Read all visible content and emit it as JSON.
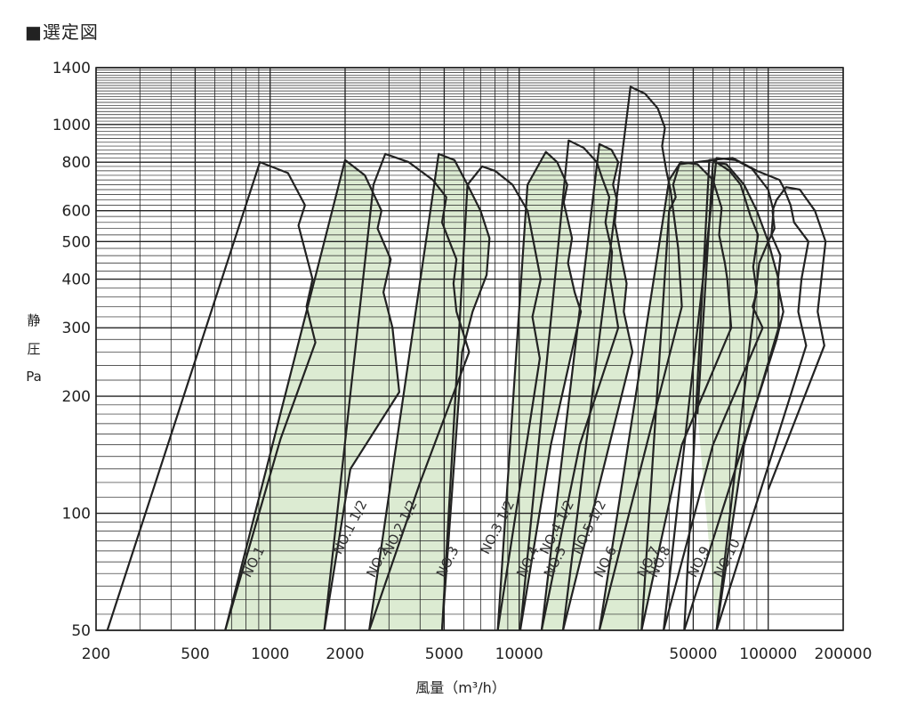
{
  "title": "■選定図",
  "chart_data": {
    "type": "area",
    "x_scale": "log",
    "y_scale": "log",
    "xlabel": "風量（m³/h）",
    "ylabel_lines": [
      "静",
      "圧",
      "Pa"
    ],
    "xlim": [
      200,
      200000
    ],
    "ylim": [
      50,
      1400
    ],
    "x_ticks": [
      200,
      500,
      1000,
      2000,
      5000,
      10000,
      50000,
      100000,
      200000
    ],
    "x_tick_labels": [
      "200",
      "500",
      "1000",
      "2000",
      "5000",
      "10000",
      "50000",
      "100000",
      "200000"
    ],
    "y_ticks": [
      50,
      100,
      200,
      300,
      400,
      500,
      600,
      800,
      1000,
      1400
    ],
    "y_tick_labels": [
      "50",
      "100",
      "200",
      "300",
      "400",
      "500",
      "600",
      "800",
      "1000",
      "1400"
    ],
    "grid": true,
    "fill_color": "#dcebd2",
    "line_color": "#222222",
    "series": [
      {
        "name": "NO.1",
        "filled": false,
        "label_at": [
          830,
          68
        ],
        "points": [
          [
            222,
            50
          ],
          [
            910,
            800
          ],
          [
            1180,
            750
          ],
          [
            1380,
            620
          ],
          [
            1300,
            550
          ],
          [
            1480,
            400
          ],
          [
            1400,
            340
          ],
          [
            1520,
            275
          ],
          [
            1100,
            155
          ],
          [
            660,
            50
          ]
        ]
      },
      {
        "name": "NO.1 1/2",
        "filled": true,
        "label_at": [
          1920,
          78
        ],
        "points": [
          [
            660,
            50
          ],
          [
            2000,
            810
          ],
          [
            2400,
            740
          ],
          [
            2800,
            600
          ],
          [
            2700,
            540
          ],
          [
            3050,
            450
          ],
          [
            2850,
            370
          ],
          [
            3100,
            300
          ],
          [
            3300,
            205
          ],
          [
            2100,
            130
          ],
          [
            1650,
            50
          ]
        ]
      },
      {
        "name": "NO.2",
        "filled": false,
        "label_at": [
          2620,
          68
        ],
        "points": [
          [
            1650,
            50
          ],
          [
            2600,
            700
          ],
          [
            2900,
            840
          ],
          [
            3600,
            800
          ],
          [
            4500,
            720
          ],
          [
            5100,
            650
          ],
          [
            4900,
            560
          ],
          [
            5600,
            450
          ],
          [
            5450,
            390
          ],
          [
            5600,
            330
          ],
          [
            6300,
            260
          ],
          [
            4000,
            120
          ],
          [
            2500,
            50
          ]
        ]
      },
      {
        "name": "NO.2 1/2",
        "filled": true,
        "label_at": [
          3050,
          78
        ],
        "points": [
          [
            2500,
            50
          ],
          [
            4750,
            840
          ],
          [
            5500,
            810
          ],
          [
            6200,
            700
          ],
          [
            7000,
            600
          ],
          [
            7600,
            510
          ],
          [
            7400,
            410
          ],
          [
            6500,
            330
          ],
          [
            5900,
            260
          ],
          [
            4900,
            50
          ]
        ]
      },
      {
        "name": "NO.3",
        "filled": false,
        "label_at": [
          5000,
          68
        ],
        "points": [
          [
            4900,
            50
          ],
          [
            6200,
            700
          ],
          [
            7100,
            780
          ],
          [
            8000,
            760
          ],
          [
            9400,
            700
          ],
          [
            10800,
            600
          ],
          [
            12200,
            400
          ],
          [
            11300,
            320
          ],
          [
            12100,
            250
          ],
          [
            8200,
            50
          ]
        ]
      },
      {
        "name": "NO.3 1/2",
        "filled": true,
        "label_at": [
          7500,
          78
        ],
        "points": [
          [
            8200,
            50
          ],
          [
            10800,
            700
          ],
          [
            12800,
            850
          ],
          [
            14200,
            800
          ],
          [
            15600,
            700
          ],
          [
            15100,
            630
          ],
          [
            16300,
            510
          ],
          [
            15700,
            440
          ],
          [
            16700,
            370
          ],
          [
            17700,
            330
          ],
          [
            13400,
            150
          ],
          [
            10100,
            50
          ]
        ]
      },
      {
        "name": "NO.4",
        "filled": false,
        "label_at": [
          10500,
          68
        ],
        "points": [
          [
            10100,
            50
          ],
          [
            15800,
            910
          ],
          [
            18200,
            870
          ],
          [
            20500,
            800
          ],
          [
            21500,
            730
          ],
          [
            23000,
            650
          ],
          [
            22200,
            560
          ],
          [
            23600,
            470
          ],
          [
            23200,
            400
          ],
          [
            25000,
            300
          ],
          [
            17500,
            150
          ],
          [
            12300,
            50
          ]
        ]
      },
      {
        "name": "NO.4 1/2",
        "filled": true,
        "label_at": [
          13000,
          78
        ],
        "points": [
          [
            12300,
            50
          ],
          [
            21000,
            890
          ],
          [
            23500,
            860
          ],
          [
            25000,
            800
          ],
          [
            23800,
            700
          ],
          [
            24700,
            640
          ],
          [
            24200,
            560
          ],
          [
            25800,
            450
          ],
          [
            27000,
            390
          ],
          [
            26300,
            330
          ],
          [
            28500,
            260
          ],
          [
            15000,
            50
          ]
        ]
      },
      {
        "name": "NO.5",
        "filled": false,
        "label_at": [
          13500,
          68
        ],
        "points": [
          [
            15000,
            50
          ],
          [
            28000,
            1250
          ],
          [
            32000,
            1200
          ],
          [
            36000,
            1100
          ],
          [
            38500,
            980
          ],
          [
            37500,
            880
          ],
          [
            39000,
            760
          ],
          [
            40500,
            680
          ],
          [
            42000,
            570
          ],
          [
            43500,
            480
          ],
          [
            45000,
            340
          ],
          [
            21000,
            50
          ]
        ]
      },
      {
        "name": "NO.5 1/2",
        "filled": true,
        "label_at": [
          17500,
          78
        ],
        "points": [
          [
            21000,
            50
          ],
          [
            40000,
            720
          ],
          [
            44500,
            800
          ],
          [
            52000,
            790
          ],
          [
            60000,
            720
          ],
          [
            65000,
            610
          ],
          [
            63500,
            520
          ],
          [
            67000,
            440
          ],
          [
            68500,
            400
          ],
          [
            71000,
            300
          ],
          [
            45000,
            150
          ],
          [
            31000,
            50
          ]
        ]
      },
      {
        "name": "NO.6",
        "filled": false,
        "label_at": [
          21500,
          68
        ],
        "points": [
          [
            31000,
            50
          ],
          [
            40000,
            600
          ],
          [
            42500,
            650
          ],
          [
            41500,
            700
          ],
          [
            44000,
            790
          ],
          [
            60000,
            810
          ],
          [
            70000,
            760
          ],
          [
            77500,
            700
          ],
          [
            85000,
            580
          ],
          [
            91000,
            520
          ],
          [
            87000,
            430
          ],
          [
            90000,
            370
          ],
          [
            86500,
            340
          ],
          [
            95000,
            300
          ],
          [
            60000,
            150
          ],
          [
            38000,
            50
          ]
        ]
      },
      {
        "name": "NO.7",
        "filled": false,
        "label_at": [
          32000,
          68
        ],
        "points": [
          [
            38000,
            50
          ],
          [
            62000,
            820
          ],
          [
            74000,
            810
          ],
          [
            86000,
            770
          ],
          [
            100000,
            680
          ],
          [
            105000,
            600
          ],
          [
            103000,
            520
          ],
          [
            112000,
            460
          ],
          [
            109000,
            390
          ],
          [
            115000,
            330
          ],
          [
            108000,
            280
          ],
          [
            46000,
            50
          ]
        ]
      },
      {
        "name": "NO.8",
        "filled": false,
        "label_at": [
          35500,
          68
        ],
        "points": [
          [
            46000,
            50
          ],
          [
            58000,
            810
          ],
          [
            72000,
            820
          ],
          [
            90000,
            760
          ],
          [
            111000,
            720
          ],
          [
            115000,
            690
          ],
          [
            123000,
            620
          ],
          [
            127000,
            560
          ],
          [
            145000,
            500
          ],
          [
            136000,
            400
          ],
          [
            132000,
            330
          ],
          [
            142000,
            270
          ],
          [
            62000,
            50
          ]
        ]
      },
      {
        "name": "NO.9",
        "filled": true,
        "label_at": [
          51000,
          68
        ],
        "points": [
          [
            52000,
            180
          ],
          [
            60000,
            800
          ],
          [
            68000,
            790
          ],
          [
            80000,
            700
          ],
          [
            90000,
            600
          ],
          [
            100000,
            500
          ],
          [
            110000,
            400
          ],
          [
            110000,
            300
          ],
          [
            80000,
            150
          ],
          [
            62000,
            50
          ]
        ]
      },
      {
        "name": "NO.10",
        "filled": false,
        "label_at": [
          65000,
          68
        ],
        "points": [
          [
            62000,
            50
          ],
          [
            92000,
            440
          ],
          [
            100000,
            500
          ],
          [
            106000,
            540
          ],
          [
            104000,
            600
          ],
          [
            108000,
            640
          ],
          [
            118000,
            690
          ],
          [
            134000,
            680
          ],
          [
            154000,
            600
          ],
          [
            170000,
            500
          ],
          [
            158000,
            330
          ],
          [
            168000,
            270
          ],
          [
            100000,
            115
          ]
        ]
      }
    ]
  }
}
